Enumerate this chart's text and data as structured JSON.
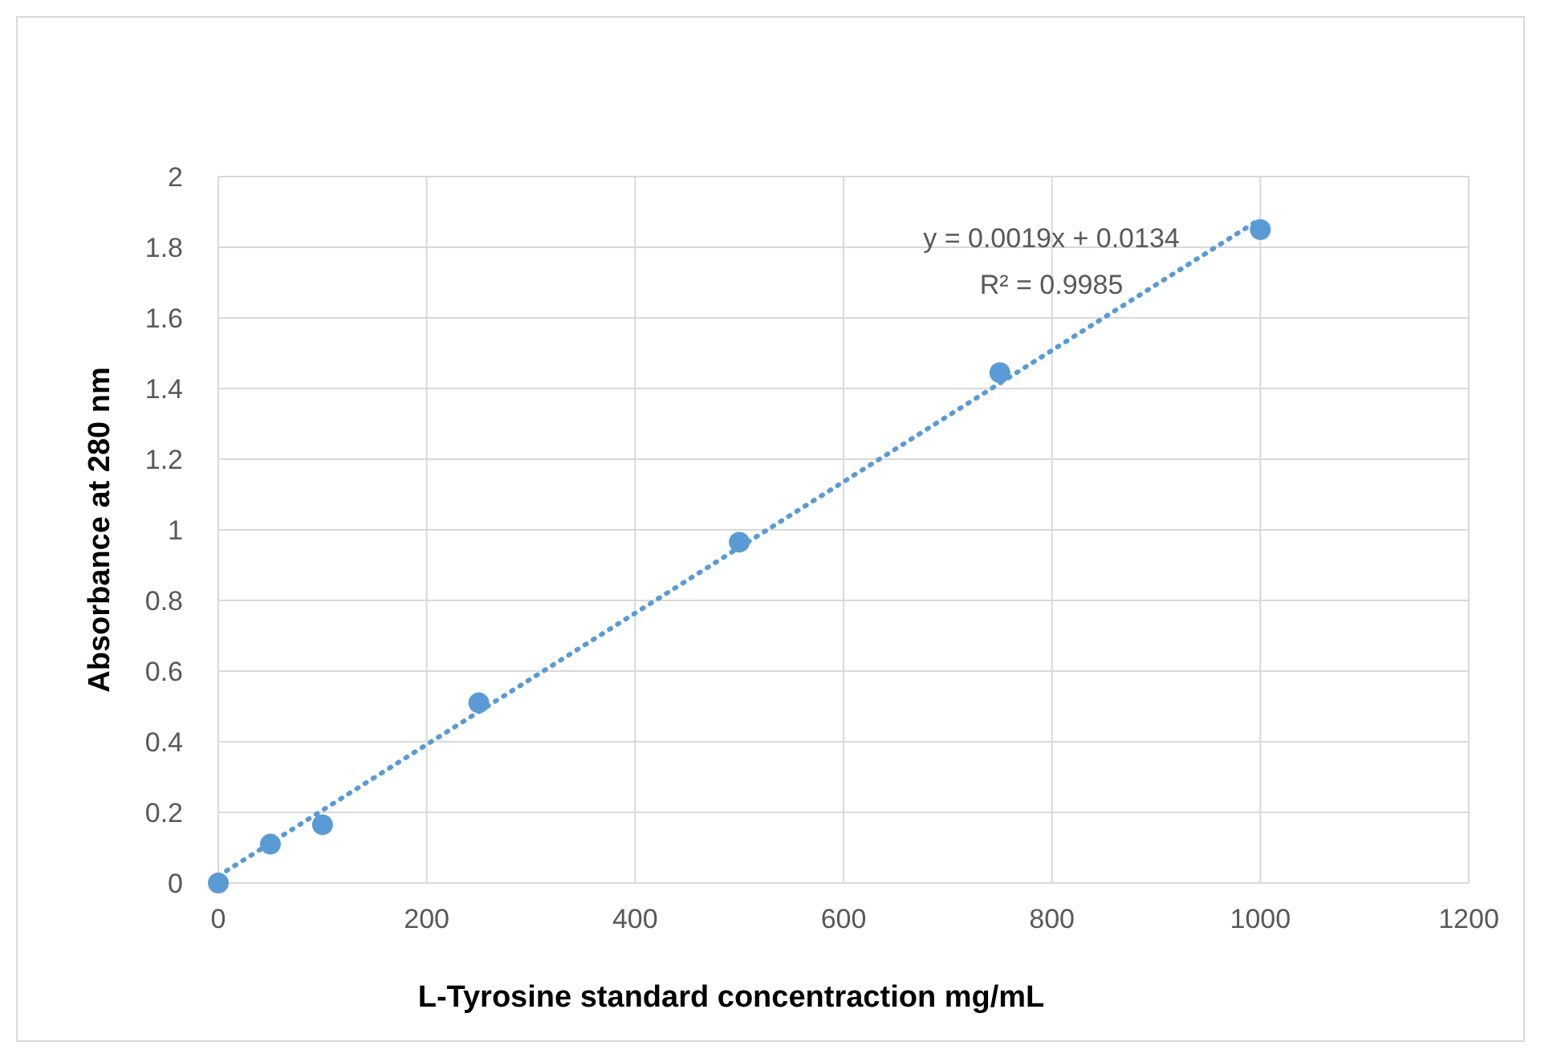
{
  "chart_data": {
    "type": "scatter",
    "xlabel": "L-Tyrosine standard concentraction mg/mL",
    "ylabel": "Absorbance at 280 nm",
    "xlim": [
      0,
      1200
    ],
    "xticks": [
      0,
      200,
      400,
      600,
      800,
      1000,
      1200
    ],
    "ylim": [
      0,
      2
    ],
    "yticks": [
      0,
      0.2,
      0.4,
      0.6,
      0.8,
      1,
      1.2,
      1.4,
      1.6,
      1.8,
      2
    ],
    "grid": true,
    "series": [
      {
        "type": "line",
        "color": "#5b9bd5",
        "x": [
          0,
          1000
        ],
        "values": [
          0.02,
          1.88
        ],
        "line_style": "dotted",
        "marker": "none"
      },
      {
        "color": "#5b9bd5",
        "x": [
          0,
          50,
          100,
          250,
          500,
          750,
          1000
        ],
        "values": [
          0,
          0.11,
          0.165,
          0.51,
          0.965,
          1.445,
          1.85
        ],
        "marker": "circle"
      }
    ],
    "annotations": [
      "y = 0.0019x + 0.0134",
      "R² = 0.9985"
    ]
  }
}
